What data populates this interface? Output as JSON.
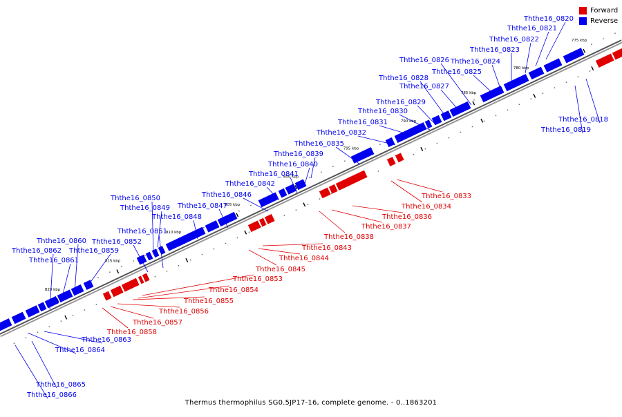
{
  "legend": {
    "forward_label": "Forward",
    "reverse_label": "Reverse",
    "forward_color": "#e00000",
    "reverse_color": "#0000ee"
  },
  "caption": "Thermus thermophilus SG0.5JP17-16, complete genome. - 0..1863201",
  "colors": {
    "forward": "#e00000",
    "reverse": "#0000ee",
    "axis": "#888888",
    "tick": "#000000"
  },
  "scale_labels": [
    "775 kbp",
    "780 kbp",
    "785 kbp",
    "790 kbp",
    "795 kbp",
    "800 kbp",
    "805 kbp",
    "810 kbp",
    "815 kbp",
    "820 kbp"
  ],
  "reverse_labels": [
    "Ththe16_0818",
    "Ththe16_0819",
    "Ththe16_0820",
    "Ththe16_0821",
    "Ththe16_0822",
    "Ththe16_0823",
    "Ththe16_0824",
    "Ththe16_0825",
    "Ththe16_0826",
    "Ththe16_0827",
    "Ththe16_0828",
    "Ththe16_0829",
    "Ththe16_0830",
    "Ththe16_0831",
    "Ththe16_0832",
    "Ththe16_0835",
    "Ththe16_0839",
    "Ththe16_0840",
    "Ththe16_0841",
    "Ththe16_0842",
    "Ththe16_0846",
    "Ththe16_0847",
    "Ththe16_0848",
    "Ththe16_0849",
    "Ththe16_0850",
    "Ththe16_0851",
    "Ththe16_0852",
    "Ththe16_0859",
    "Ththe16_0860",
    "Ththe16_0861",
    "Ththe16_0862",
    "Ththe16_0863",
    "Ththe16_0864",
    "Ththe16_0865",
    "Ththe16_0866"
  ],
  "forward_labels": [
    "Ththe16_0833",
    "Ththe16_0834",
    "Ththe16_0836",
    "Ththe16_0837",
    "Ththe16_0838",
    "Ththe16_0843",
    "Ththe16_0844",
    "Ththe16_0845",
    "Ththe16_0853",
    "Ththe16_0854",
    "Ththe16_0855",
    "Ththe16_0856",
    "Ththe16_0857",
    "Ththe16_0858"
  ]
}
